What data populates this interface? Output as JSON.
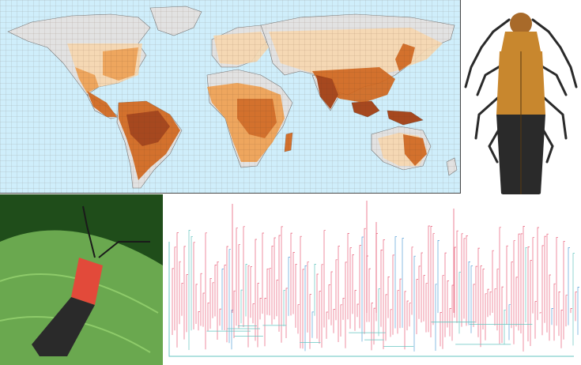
{
  "figure": {
    "panels": [
      {
        "id": "map",
        "content": "world-distribution-map"
      },
      {
        "id": "beetle-top",
        "content": "specimen-dorsal-view"
      },
      {
        "id": "beetle-photo",
        "content": "field-photo-on-leaf"
      },
      {
        "id": "phylogeny",
        "content": "phylogenetic-tree"
      }
    ]
  },
  "colors": {
    "ocean": "#cfeefb",
    "land": "#e2e2e2",
    "range_light": "#f8d8b0",
    "range_mid": "#f0a050",
    "range_dark": "#d2651a",
    "range_darkest": "#a0380a",
    "beetle_orange": "#c8872e",
    "beetle_black": "#2a2a2a",
    "photo_leaf": "#6aa84f",
    "photo_beetle_red": "#e24a3a",
    "tree_red": "#e8607a",
    "tree_blue": "#5aa0d8",
    "tree_teal": "#66c6c0"
  }
}
